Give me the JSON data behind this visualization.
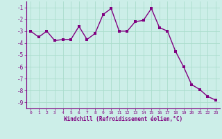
{
  "x": [
    0,
    1,
    2,
    3,
    4,
    5,
    6,
    7,
    8,
    9,
    10,
    11,
    12,
    13,
    14,
    15,
    16,
    17,
    18,
    19,
    20,
    21,
    22,
    23
  ],
  "y": [
    -3.0,
    -3.5,
    -3.0,
    -3.8,
    -3.7,
    -3.7,
    -2.6,
    -3.7,
    -3.2,
    -1.6,
    -1.1,
    -3.0,
    -3.0,
    -2.2,
    -2.1,
    -1.1,
    -2.7,
    -3.0,
    -4.7,
    -6.0,
    -7.5,
    -7.9,
    -8.5,
    -8.8
  ],
  "line_color": "#800080",
  "marker_color": "#800080",
  "bg_color": "#cceee8",
  "grid_color": "#aaddcc",
  "xlabel": "Windchill (Refroidissement éolien,°C)",
  "ylim": [
    -9.5,
    -0.5
  ],
  "xlim": [
    -0.5,
    23.5
  ],
  "yticks": [
    -9,
    -8,
    -7,
    -6,
    -5,
    -4,
    -3,
    -2,
    -1
  ],
  "xticks": [
    0,
    1,
    2,
    3,
    4,
    5,
    6,
    7,
    8,
    9,
    10,
    11,
    12,
    13,
    14,
    15,
    16,
    17,
    18,
    19,
    20,
    21,
    22,
    23
  ],
  "marker_size": 2.5,
  "line_width": 1.0
}
